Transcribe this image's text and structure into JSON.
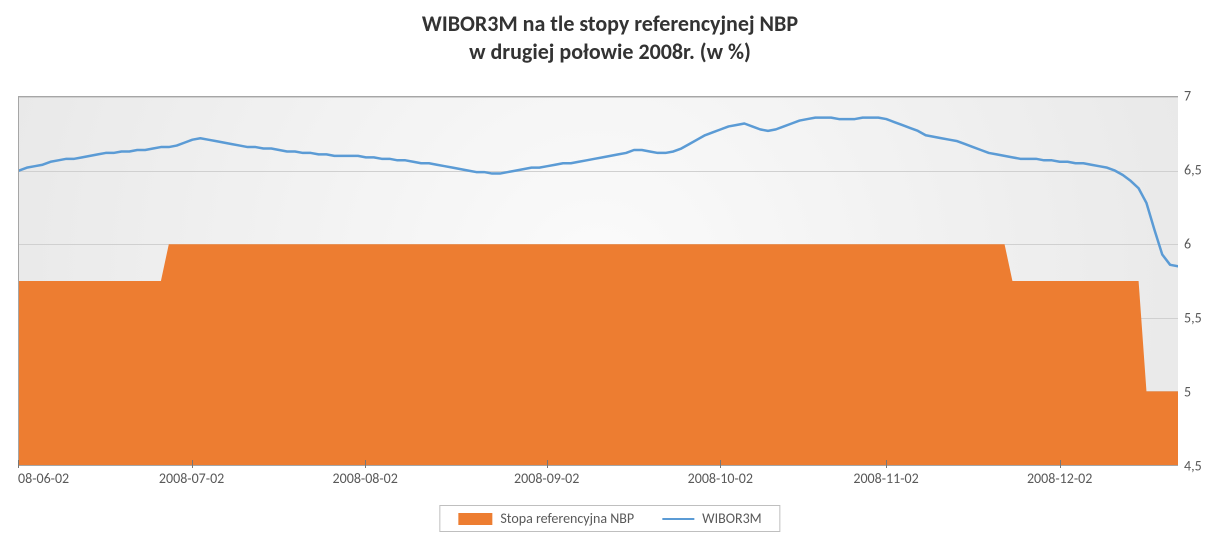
{
  "chart": {
    "type": "combo-area-line",
    "title_line1": "WIBOR3M na tle stopy referencyjnej NBP",
    "title_line2": "w drugiej połowie 2008r. (w %)",
    "title_fontsize": 22,
    "title_color": "#333333",
    "background_gradient_inner": "#fbfbfb",
    "background_gradient_outer": "#e9e9e9",
    "plot_border_color": "#a6a6a6",
    "grid_color": "#d0d0d0",
    "axis_label_color": "#595959",
    "axis_label_fontsize": 14,
    "y": {
      "min": 4.5,
      "max": 7,
      "tick_step": 0.5,
      "ticks": [
        "4,5",
        "5",
        "5,5",
        "6",
        "6,5",
        "7"
      ]
    },
    "x": {
      "n_points": 148,
      "tick_indices": [
        0,
        22,
        44,
        67,
        89,
        110,
        132
      ],
      "tick_labels": [
        "08-06-02",
        "2008-07-02",
        "2008-08-02",
        "2008-09-02",
        "2008-10-02",
        "2008-11-02",
        "2008-12-02"
      ]
    },
    "series": {
      "stopa": {
        "label": "Stopa referencyjna NBP",
        "type": "area",
        "color": "#ed7d31",
        "values": [
          5.75,
          5.75,
          5.75,
          5.75,
          5.75,
          5.75,
          5.75,
          5.75,
          5.75,
          5.75,
          5.75,
          5.75,
          5.75,
          5.75,
          5.75,
          5.75,
          5.75,
          5.75,
          5.75,
          6.0,
          6.0,
          6.0,
          6.0,
          6.0,
          6.0,
          6.0,
          6.0,
          6.0,
          6.0,
          6.0,
          6.0,
          6.0,
          6.0,
          6.0,
          6.0,
          6.0,
          6.0,
          6.0,
          6.0,
          6.0,
          6.0,
          6.0,
          6.0,
          6.0,
          6.0,
          6.0,
          6.0,
          6.0,
          6.0,
          6.0,
          6.0,
          6.0,
          6.0,
          6.0,
          6.0,
          6.0,
          6.0,
          6.0,
          6.0,
          6.0,
          6.0,
          6.0,
          6.0,
          6.0,
          6.0,
          6.0,
          6.0,
          6.0,
          6.0,
          6.0,
          6.0,
          6.0,
          6.0,
          6.0,
          6.0,
          6.0,
          6.0,
          6.0,
          6.0,
          6.0,
          6.0,
          6.0,
          6.0,
          6.0,
          6.0,
          6.0,
          6.0,
          6.0,
          6.0,
          6.0,
          6.0,
          6.0,
          6.0,
          6.0,
          6.0,
          6.0,
          6.0,
          6.0,
          6.0,
          6.0,
          6.0,
          6.0,
          6.0,
          6.0,
          6.0,
          6.0,
          6.0,
          6.0,
          6.0,
          6.0,
          6.0,
          6.0,
          6.0,
          6.0,
          6.0,
          6.0,
          6.0,
          6.0,
          6.0,
          6.0,
          6.0,
          6.0,
          6.0,
          6.0,
          6.0,
          6.0,
          5.75,
          5.75,
          5.75,
          5.75,
          5.75,
          5.75,
          5.75,
          5.75,
          5.75,
          5.75,
          5.75,
          5.75,
          5.75,
          5.75,
          5.75,
          5.75,
          5.75,
          5.0,
          5.0,
          5.0,
          5.0,
          5.0
        ]
      },
      "wibor": {
        "label": "WIBOR3M",
        "type": "line",
        "color": "#5b9bd5",
        "line_width": 2.5,
        "values": [
          6.5,
          6.52,
          6.53,
          6.54,
          6.56,
          6.57,
          6.58,
          6.58,
          6.59,
          6.6,
          6.61,
          6.62,
          6.62,
          6.63,
          6.63,
          6.64,
          6.64,
          6.65,
          6.66,
          6.66,
          6.67,
          6.69,
          6.71,
          6.72,
          6.71,
          6.7,
          6.69,
          6.68,
          6.67,
          6.66,
          6.66,
          6.65,
          6.65,
          6.64,
          6.63,
          6.63,
          6.62,
          6.62,
          6.61,
          6.61,
          6.6,
          6.6,
          6.6,
          6.6,
          6.59,
          6.59,
          6.58,
          6.58,
          6.57,
          6.57,
          6.56,
          6.55,
          6.55,
          6.54,
          6.53,
          6.52,
          6.51,
          6.5,
          6.49,
          6.49,
          6.48,
          6.48,
          6.49,
          6.5,
          6.51,
          6.52,
          6.52,
          6.53,
          6.54,
          6.55,
          6.55,
          6.56,
          6.57,
          6.58,
          6.59,
          6.6,
          6.61,
          6.62,
          6.64,
          6.64,
          6.63,
          6.62,
          6.62,
          6.63,
          6.65,
          6.68,
          6.71,
          6.74,
          6.76,
          6.78,
          6.8,
          6.81,
          6.82,
          6.8,
          6.78,
          6.77,
          6.78,
          6.8,
          6.82,
          6.84,
          6.85,
          6.86,
          6.86,
          6.86,
          6.85,
          6.85,
          6.85,
          6.86,
          6.86,
          6.86,
          6.85,
          6.83,
          6.81,
          6.79,
          6.77,
          6.74,
          6.73,
          6.72,
          6.71,
          6.7,
          6.68,
          6.66,
          6.64,
          6.62,
          6.61,
          6.6,
          6.59,
          6.58,
          6.58,
          6.58,
          6.57,
          6.57,
          6.56,
          6.56,
          6.55,
          6.55,
          6.54,
          6.53,
          6.52,
          6.5,
          6.47,
          6.43,
          6.38,
          6.28,
          6.1,
          5.93,
          5.86,
          5.85
        ]
      }
    },
    "legend": {
      "border_color": "#bfbfbf",
      "fontsize": 14
    }
  }
}
